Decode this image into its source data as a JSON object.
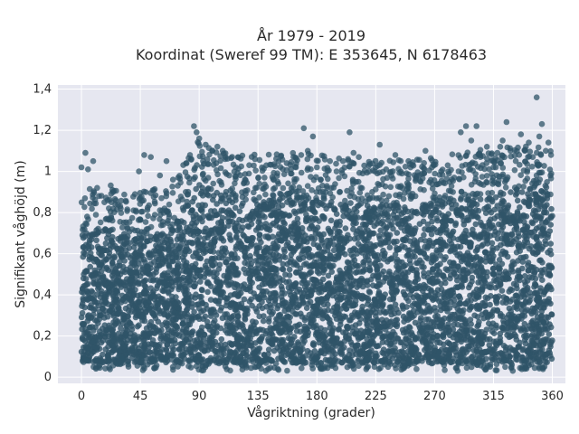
{
  "chart_data": {
    "type": "scatter",
    "title_line1": "År 1979 - 2019",
    "title_line2": "Koordinat (Sweref 99 TM): E 353645, N 6178463",
    "xlabel": "Vågriktning (grader)",
    "ylabel": "Signifikant våghöjd (m)",
    "xlim": [
      -18,
      370
    ],
    "ylim": [
      -0.03,
      1.42
    ],
    "xticks": [
      0,
      45,
      90,
      135,
      180,
      225,
      270,
      315,
      360
    ],
    "xtick_labels": [
      "0",
      "45",
      "90",
      "135",
      "180",
      "225",
      "270",
      "315",
      "360"
    ],
    "yticks": [
      0,
      0.2,
      0.4,
      0.6,
      0.8,
      1,
      1.2,
      1.4
    ],
    "ytick_labels": [
      "0",
      "0,2",
      "0,4",
      "0,6",
      "0,8",
      "1",
      "1,2",
      "1,4"
    ],
    "grid": true,
    "legend": "none",
    "colors": {
      "points": "#2f5468",
      "plot_background": "#e6e7f0",
      "grid": "#ffffff"
    },
    "density_envelope": {
      "x": [
        0,
        20,
        45,
        70,
        80,
        90,
        120,
        160,
        180,
        220,
        260,
        300,
        340,
        360
      ],
      "y_dense_low": [
        0.08,
        0.07,
        0.07,
        0.07,
        0.07,
        0.07,
        0.07,
        0.07,
        0.07,
        0.07,
        0.07,
        0.07,
        0.07,
        0.07
      ],
      "y_dense_high": [
        0.72,
        0.72,
        0.68,
        0.72,
        0.84,
        0.94,
        0.86,
        0.88,
        0.86,
        0.84,
        0.84,
        0.88,
        0.92,
        0.88
      ]
    },
    "outliers": [
      [
        0,
        1.02
      ],
      [
        3,
        1.09
      ],
      [
        5,
        1.01
      ],
      [
        9,
        1.05
      ],
      [
        12,
        0.92
      ],
      [
        20,
        0.86
      ],
      [
        26,
        0.84
      ],
      [
        30,
        0.82
      ],
      [
        44,
        1.0
      ],
      [
        48,
        1.08
      ],
      [
        53,
        1.07
      ],
      [
        60,
        0.98
      ],
      [
        65,
        1.05
      ],
      [
        70,
        0.96
      ],
      [
        74,
        0.97
      ],
      [
        80,
        1.04
      ],
      [
        84,
        1.06
      ],
      [
        86,
        1.22
      ],
      [
        88,
        1.19
      ],
      [
        90,
        1.16
      ],
      [
        93,
        1.05
      ],
      [
        95,
        1.13
      ],
      [
        100,
        1.1
      ],
      [
        103,
        1.04
      ],
      [
        108,
        1.1
      ],
      [
        110,
        1.07
      ],
      [
        113,
        0.98
      ],
      [
        118,
        1.02
      ],
      [
        125,
        0.96
      ],
      [
        133,
        0.92
      ],
      [
        140,
        0.97
      ],
      [
        150,
        0.95
      ],
      [
        160,
        0.99
      ],
      [
        164,
        1.02
      ],
      [
        168,
        1.08
      ],
      [
        170,
        1.21
      ],
      [
        173,
        1.1
      ],
      [
        177,
        1.17
      ],
      [
        180,
        1.02
      ],
      [
        183,
        0.96
      ],
      [
        190,
        1.05
      ],
      [
        195,
        1.0
      ],
      [
        200,
        1.05
      ],
      [
        205,
        1.19
      ],
      [
        208,
        1.09
      ],
      [
        212,
        1.07
      ],
      [
        220,
        1.0
      ],
      [
        225,
        1.02
      ],
      [
        228,
        1.13
      ],
      [
        233,
        1.01
      ],
      [
        240,
        1.08
      ],
      [
        245,
        0.99
      ],
      [
        250,
        1.05
      ],
      [
        258,
        0.98
      ],
      [
        263,
        1.1
      ],
      [
        268,
        1.02
      ],
      [
        275,
        1.0
      ],
      [
        280,
        1.03
      ],
      [
        285,
        0.97
      ],
      [
        290,
        1.19
      ],
      [
        294,
        1.22
      ],
      [
        298,
        1.15
      ],
      [
        302,
        1.22
      ],
      [
        305,
        1.07
      ],
      [
        310,
        1.12
      ],
      [
        315,
        1.02
      ],
      [
        318,
        1.09
      ],
      [
        322,
        1.15
      ],
      [
        325,
        1.24
      ],
      [
        328,
        1.1
      ],
      [
        332,
        1.05
      ],
      [
        336,
        1.18
      ],
      [
        339,
        1.1
      ],
      [
        342,
        1.14
      ],
      [
        345,
        1.07
      ],
      [
        348,
        1.36
      ],
      [
        350,
        1.17
      ],
      [
        352,
        1.23
      ],
      [
        355,
        1.1
      ],
      [
        357,
        1.14
      ],
      [
        359,
        1.08
      ]
    ]
  }
}
